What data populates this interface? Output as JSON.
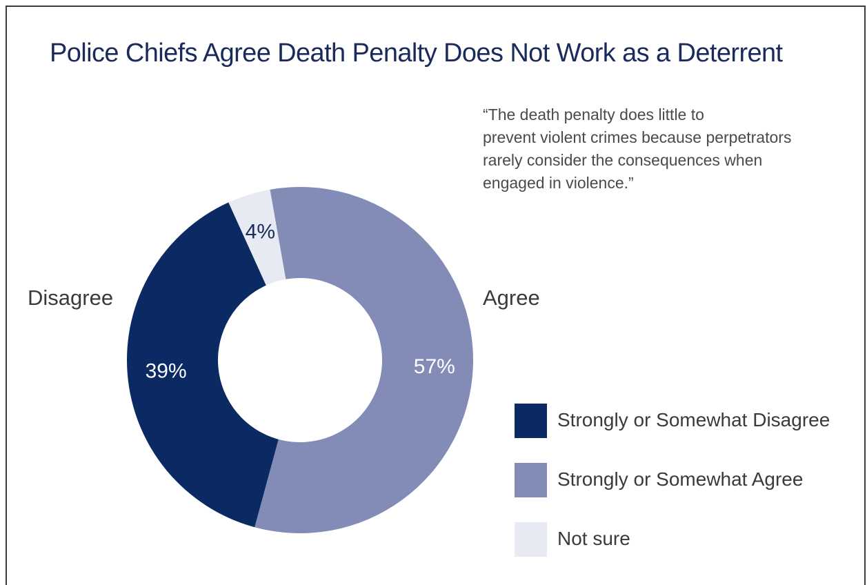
{
  "title": "Police Chiefs Agree Death Penalty Does Not Work as a Deterrent",
  "quote": "“The death penalty does little to\nprevent violent crimes because perpetrators\nrarely consider the consequences when\nengaged in violence.”",
  "side_labels": {
    "left": "Disagree",
    "right": "Agree"
  },
  "chart_data": {
    "type": "pie",
    "title": "Police Chiefs Agree Death Penalty Does Not Work as a Deterrent",
    "categories": [
      "Strongly or Somewhat Disagree",
      "Strongly or Somewhat Agree",
      "Not sure"
    ],
    "values": [
      39,
      57,
      4
    ],
    "labels": [
      "39%",
      "57%",
      "4%"
    ],
    "colors": [
      "#0b2a63",
      "#838cb6",
      "#e7e9f3"
    ],
    "label_colors": [
      "#ffffff",
      "#ffffff",
      "#1b2a5c"
    ],
    "donut": true,
    "legend": "bottom-right"
  }
}
